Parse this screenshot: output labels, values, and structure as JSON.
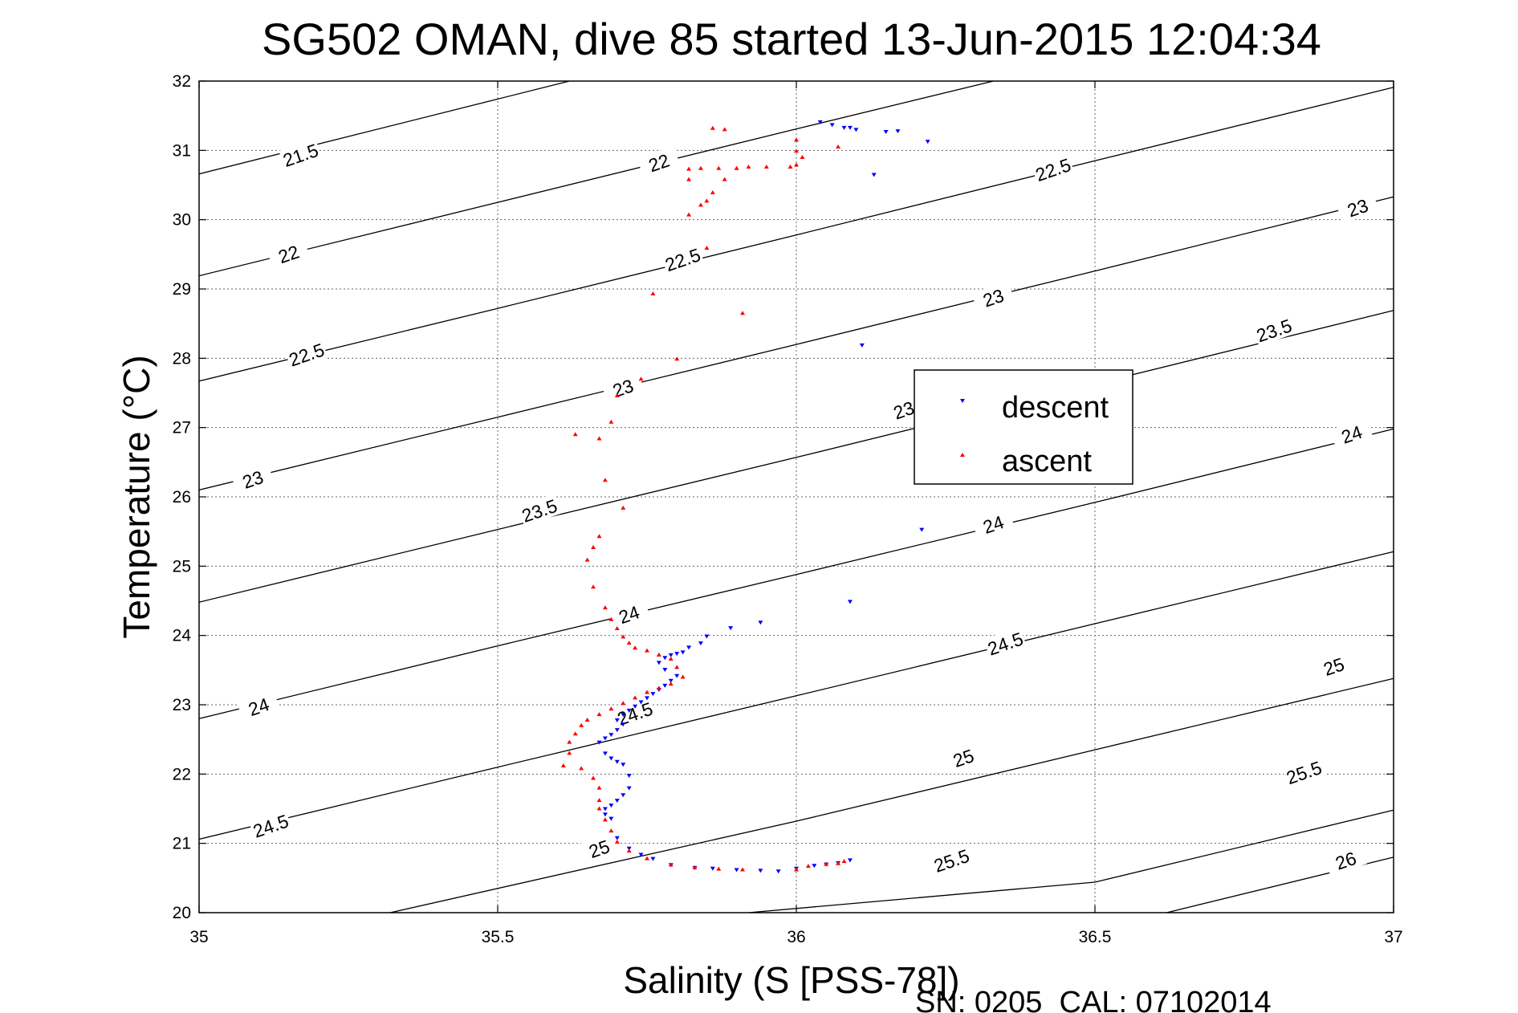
{
  "chart_data": {
    "type": "scatter",
    "title": "SG502 OMAN, dive 85 started 13-Jun-2015 12:04:34",
    "xlabel": "Salinity (S [PSS-78])",
    "ylabel": "Temperature (°C)",
    "xlim": [
      35,
      37
    ],
    "ylim": [
      20,
      32
    ],
    "xticks": [
      "35",
      "35.5",
      "36",
      "36.5",
      "37"
    ],
    "yticks": [
      "20",
      "21",
      "22",
      "23",
      "24",
      "25",
      "26",
      "27",
      "28",
      "29",
      "30",
      "31",
      "32"
    ],
    "grid": true,
    "legend_position": "right-center",
    "footer": "SN: 0205  CAL: 07102014",
    "density_contours": [
      {
        "level": "21.5",
        "pts": [
          [
            35,
            30.66
          ],
          [
            35.62,
            32
          ]
        ]
      },
      {
        "level": "22",
        "pts": [
          [
            35,
            29.19
          ],
          [
            36.0,
            31.31
          ],
          [
            36.33,
            32
          ]
        ]
      },
      {
        "level": "22.5",
        "pts": [
          [
            35,
            27.67
          ],
          [
            35.5,
            28.72
          ],
          [
            36.0,
            29.78
          ],
          [
            36.5,
            30.85
          ],
          [
            37,
            31.91
          ]
        ]
      },
      {
        "level": "23",
        "pts": [
          [
            35,
            26.1
          ],
          [
            35.5,
            27.15
          ],
          [
            36.0,
            28.2
          ],
          [
            36.5,
            29.26
          ],
          [
            37,
            30.33
          ]
        ]
      },
      {
        "level": "23.5",
        "pts": [
          [
            35,
            24.48
          ],
          [
            35.5,
            25.53
          ],
          [
            36.0,
            26.57
          ],
          [
            36.5,
            27.63
          ],
          [
            37,
            28.69
          ]
        ]
      },
      {
        "level": "24",
        "pts": [
          [
            35,
            22.8
          ],
          [
            35.5,
            23.85
          ],
          [
            36.0,
            24.88
          ],
          [
            36.5,
            25.92
          ],
          [
            37,
            26.98
          ]
        ]
      },
      {
        "level": "24.5",
        "pts": [
          [
            35,
            21.06
          ],
          [
            35.5,
            22.1
          ],
          [
            36.0,
            23.13
          ],
          [
            36.5,
            24.17
          ],
          [
            37,
            25.21
          ]
        ]
      },
      {
        "level": "25",
        "pts": [
          [
            35.32,
            20
          ],
          [
            36.0,
            21.32
          ],
          [
            36.5,
            22.35
          ],
          [
            37,
            23.38
          ]
        ]
      },
      {
        "level": "25.5",
        "pts": [
          [
            35.92,
            20
          ],
          [
            36.5,
            20.44
          ],
          [
            37,
            21.48
          ]
        ]
      },
      {
        "level": "26",
        "pts": [
          [
            36.62,
            20
          ],
          [
            37,
            20.8
          ]
        ]
      }
    ],
    "contour_labels": [
      {
        "text": "21.5",
        "x": 35.17,
        "y": 30.93,
        "angle": -19
      },
      {
        "text": "22",
        "x": 35.15,
        "y": 29.5,
        "angle": -19
      },
      {
        "text": "22",
        "x": 35.77,
        "y": 30.82,
        "angle": -19
      },
      {
        "text": "22.5",
        "x": 35.18,
        "y": 28.05,
        "angle": -19
      },
      {
        "text": "22.5",
        "x": 35.81,
        "y": 29.42,
        "angle": -19
      },
      {
        "text": "22.5",
        "x": 36.43,
        "y": 30.72,
        "angle": -19
      },
      {
        "text": "23",
        "x": 35.09,
        "y": 26.25,
        "angle": -19
      },
      {
        "text": "23",
        "x": 35.71,
        "y": 27.57,
        "angle": -19
      },
      {
        "text": "23",
        "x": 36.33,
        "y": 28.87,
        "angle": -19
      },
      {
        "text": "23",
        "x": 36.94,
        "y": 30.17,
        "angle": -19
      },
      {
        "text": "23",
        "x": 36.18,
        "y": 27.25,
        "angle": -19
      },
      {
        "text": "23.5",
        "x": 35.57,
        "y": 25.8,
        "angle": -19
      },
      {
        "text": "23.5",
        "x": 36.8,
        "y": 28.4,
        "angle": -19
      },
      {
        "text": "24",
        "x": 35.1,
        "y": 22.97,
        "angle": -19
      },
      {
        "text": "24",
        "x": 35.72,
        "y": 24.3,
        "angle": -19
      },
      {
        "text": "24",
        "x": 36.33,
        "y": 25.6,
        "angle": -19
      },
      {
        "text": "24",
        "x": 36.93,
        "y": 26.9,
        "angle": -19
      },
      {
        "text": "24.5",
        "x": 35.12,
        "y": 21.25,
        "angle": -19
      },
      {
        "text": "24.5",
        "x": 35.73,
        "y": 22.87,
        "angle": -19
      },
      {
        "text": "24.5",
        "x": 36.35,
        "y": 23.88,
        "angle": -19
      },
      {
        "text": "25",
        "x": 35.67,
        "y": 20.92,
        "angle": -19
      },
      {
        "text": "25",
        "x": 36.28,
        "y": 22.23,
        "angle": -19
      },
      {
        "text": "25",
        "x": 36.9,
        "y": 23.55,
        "angle": -19
      },
      {
        "text": "25.5",
        "x": 36.26,
        "y": 20.75,
        "angle": -19
      },
      {
        "text": "25.5",
        "x": 36.85,
        "y": 22.02,
        "angle": -19
      },
      {
        "text": "26",
        "x": 36.92,
        "y": 20.75,
        "angle": -19
      }
    ],
    "series": [
      {
        "name": "descent",
        "color": "#0000ff",
        "marker": "triangle-down",
        "points": [
          [
            36.04,
            31.41
          ],
          [
            36.06,
            31.37
          ],
          [
            36.08,
            31.33
          ],
          [
            36.09,
            31.33
          ],
          [
            36.1,
            31.3
          ],
          [
            36.15,
            31.27
          ],
          [
            36.17,
            31.28
          ],
          [
            36.22,
            31.13
          ],
          [
            36.13,
            30.65
          ],
          [
            36.11,
            28.19
          ],
          [
            36.21,
            25.53
          ],
          [
            36.09,
            24.49
          ],
          [
            35.94,
            24.19
          ],
          [
            35.89,
            24.11
          ],
          [
            35.85,
            23.99
          ],
          [
            35.84,
            23.89
          ],
          [
            35.82,
            23.83
          ],
          [
            35.81,
            23.76
          ],
          [
            35.8,
            23.74
          ],
          [
            35.79,
            23.72
          ],
          [
            35.78,
            23.68
          ],
          [
            35.77,
            23.61
          ],
          [
            35.78,
            23.51
          ],
          [
            35.8,
            23.42
          ],
          [
            35.79,
            23.35
          ],
          [
            35.78,
            23.28
          ],
          [
            35.77,
            23.22
          ],
          [
            35.76,
            23.16
          ],
          [
            35.75,
            23.1
          ],
          [
            35.74,
            23.04
          ],
          [
            35.73,
            22.98
          ],
          [
            35.72,
            22.92
          ],
          [
            35.71,
            22.86
          ],
          [
            35.7,
            22.78
          ],
          [
            35.71,
            22.72
          ],
          [
            35.7,
            22.64
          ],
          [
            35.69,
            22.57
          ],
          [
            35.68,
            22.52
          ],
          [
            35.67,
            22.46
          ],
          [
            35.68,
            22.3
          ],
          [
            35.69,
            22.23
          ],
          [
            35.7,
            22.18
          ],
          [
            35.71,
            22.14
          ],
          [
            35.72,
            21.98
          ],
          [
            35.72,
            21.8
          ],
          [
            35.71,
            21.7
          ],
          [
            35.7,
            21.62
          ],
          [
            35.69,
            21.55
          ],
          [
            35.68,
            21.5
          ],
          [
            35.68,
            21.42
          ],
          [
            35.69,
            21.36
          ],
          [
            35.7,
            21.08
          ],
          [
            35.72,
            20.93
          ],
          [
            35.74,
            20.84
          ],
          [
            35.76,
            20.78
          ],
          [
            35.79,
            20.69
          ],
          [
            35.83,
            20.65
          ],
          [
            35.86,
            20.64
          ],
          [
            35.9,
            20.62
          ],
          [
            35.94,
            20.61
          ],
          [
            35.97,
            20.6
          ],
          [
            36.0,
            20.64
          ],
          [
            36.03,
            20.68
          ],
          [
            36.05,
            20.7
          ],
          [
            36.07,
            20.72
          ],
          [
            36.09,
            20.76
          ]
        ]
      },
      {
        "name": "ascent",
        "color": "#ff0000",
        "marker": "triangle-up",
        "points": [
          [
            35.86,
            31.32
          ],
          [
            35.88,
            31.3
          ],
          [
            36.0,
            31.15
          ],
          [
            36.07,
            31.05
          ],
          [
            36.0,
            30.99
          ],
          [
            36.01,
            30.9
          ],
          [
            36.0,
            30.79
          ],
          [
            35.99,
            30.76
          ],
          [
            35.95,
            30.76
          ],
          [
            35.92,
            30.76
          ],
          [
            35.9,
            30.74
          ],
          [
            35.87,
            30.74
          ],
          [
            35.84,
            30.74
          ],
          [
            35.82,
            30.73
          ],
          [
            35.82,
            30.58
          ],
          [
            35.88,
            30.58
          ],
          [
            35.86,
            30.39
          ],
          [
            35.85,
            30.27
          ],
          [
            35.84,
            30.21
          ],
          [
            35.82,
            30.07
          ],
          [
            35.85,
            29.59
          ],
          [
            35.76,
            28.93
          ],
          [
            35.91,
            28.65
          ],
          [
            35.8,
            27.99
          ],
          [
            35.74,
            27.7
          ],
          [
            35.7,
            27.46
          ],
          [
            35.69,
            27.08
          ],
          [
            35.63,
            26.9
          ],
          [
            35.67,
            26.84
          ],
          [
            35.68,
            26.24
          ],
          [
            35.71,
            25.84
          ],
          [
            35.67,
            25.43
          ],
          [
            35.66,
            25.27
          ],
          [
            35.65,
            25.09
          ],
          [
            35.66,
            24.7
          ],
          [
            35.68,
            24.4
          ],
          [
            35.69,
            24.23
          ],
          [
            35.7,
            24.1
          ],
          [
            35.71,
            23.98
          ],
          [
            35.72,
            23.89
          ],
          [
            35.73,
            23.82
          ],
          [
            35.75,
            23.78
          ],
          [
            35.77,
            23.72
          ],
          [
            35.79,
            23.66
          ],
          [
            35.8,
            23.54
          ],
          [
            35.81,
            23.4
          ],
          [
            35.79,
            23.3
          ],
          [
            35.77,
            23.24
          ],
          [
            35.75,
            23.18
          ],
          [
            35.73,
            23.1
          ],
          [
            35.71,
            23.02
          ],
          [
            35.69,
            22.94
          ],
          [
            35.67,
            22.86
          ],
          [
            35.65,
            22.78
          ],
          [
            35.64,
            22.7
          ],
          [
            35.63,
            22.58
          ],
          [
            35.62,
            22.46
          ],
          [
            35.62,
            22.3
          ],
          [
            35.61,
            22.12
          ],
          [
            35.64,
            22.08
          ],
          [
            35.66,
            21.94
          ],
          [
            35.67,
            21.8
          ],
          [
            35.67,
            21.62
          ],
          [
            35.67,
            21.5
          ],
          [
            35.68,
            21.34
          ],
          [
            35.69,
            21.18
          ],
          [
            35.7,
            21.02
          ],
          [
            35.72,
            20.89
          ],
          [
            35.75,
            20.78
          ],
          [
            35.79,
            20.69
          ],
          [
            35.83,
            20.65
          ],
          [
            35.87,
            20.63
          ],
          [
            35.91,
            20.62
          ],
          [
            36.0,
            20.62
          ],
          [
            36.02,
            20.67
          ],
          [
            36.05,
            20.7
          ],
          [
            36.07,
            20.71
          ],
          [
            36.08,
            20.74
          ]
        ]
      }
    ]
  }
}
